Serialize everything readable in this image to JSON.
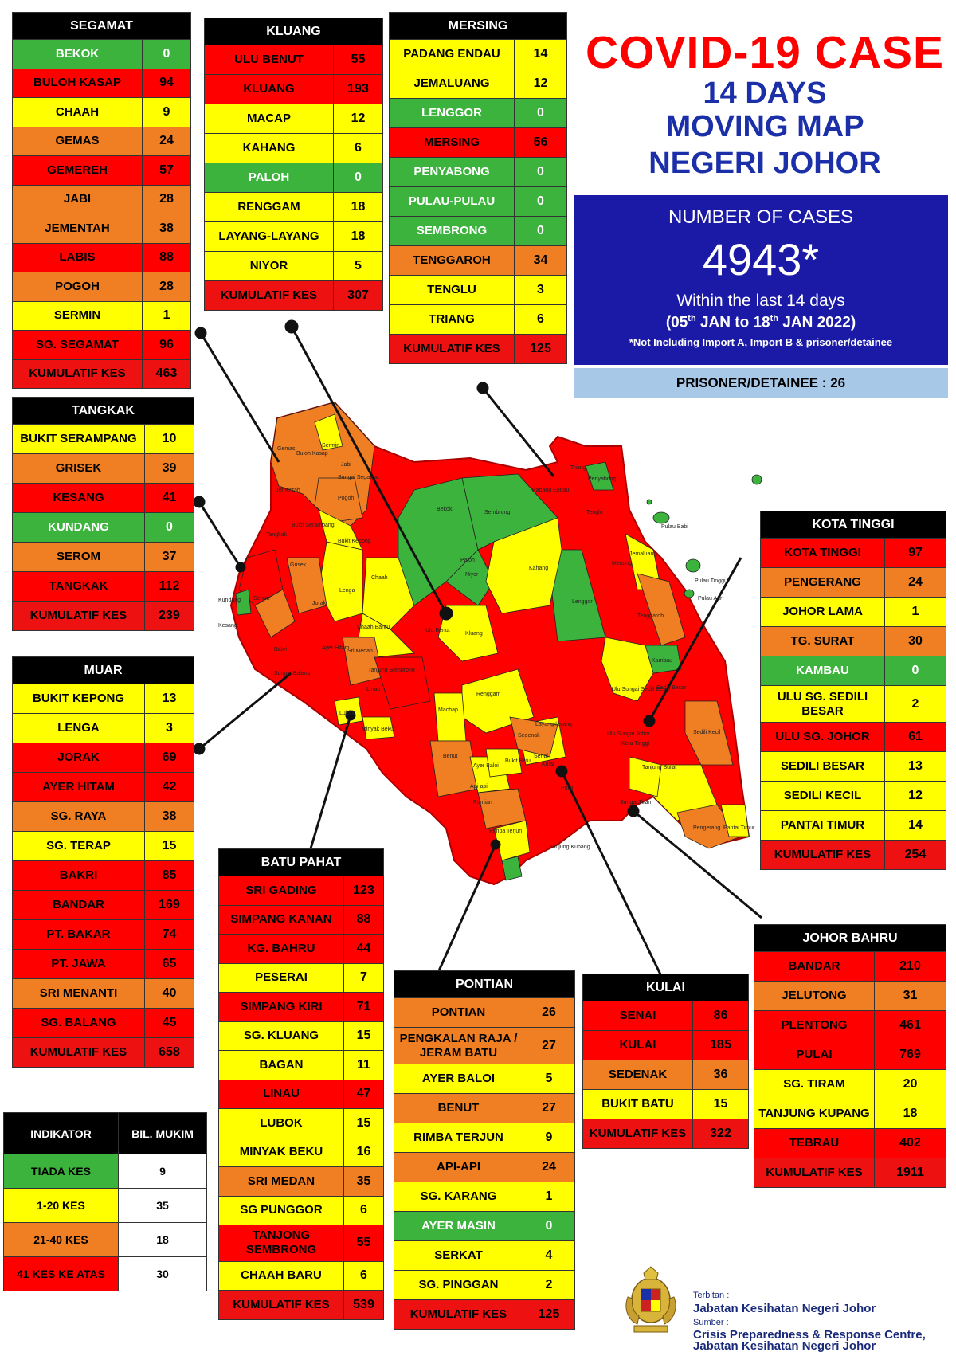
{
  "title": {
    "line1": "COVID-19 CASE",
    "line2": "14 DAYS",
    "line3": "MOVING MAP",
    "line4": "NEGERI JOHOR"
  },
  "summary": {
    "label": "NUMBER OF CASES",
    "total": "4943*",
    "within": "Within the last 14 days",
    "range": "(05th JAN to 18th JAN 2022)",
    "note": "*Not Including Import A, Import B & prisoner/detainee",
    "prisoner": "PRISONER/DETAINEE : 26"
  },
  "colors": {
    "green": "#3cb33c",
    "yellow": "#ffff00",
    "orange": "#f07f23",
    "red": "#ff0000",
    "title_red": "#ff0000",
    "title_blue": "#1a2fa8",
    "box_blue": "#1a1aa6",
    "prisoner_blue": "#a8c8e8"
  },
  "districts": {
    "segamat": {
      "title": "SEGAMAT",
      "rows": [
        {
          "name": "BEKOK",
          "value": "0",
          "color": "green"
        },
        {
          "name": "BULOH KASAP",
          "value": "94",
          "color": "red"
        },
        {
          "name": "CHAAH",
          "value": "9",
          "color": "yellow"
        },
        {
          "name": "GEMAS",
          "value": "24",
          "color": "orange"
        },
        {
          "name": "GEMEREH",
          "value": "57",
          "color": "red"
        },
        {
          "name": "JABI",
          "value": "28",
          "color": "orange"
        },
        {
          "name": "JEMENTAH",
          "value": "38",
          "color": "orange"
        },
        {
          "name": "LABIS",
          "value": "88",
          "color": "red"
        },
        {
          "name": "POGOH",
          "value": "28",
          "color": "orange"
        },
        {
          "name": "SERMIN",
          "value": "1",
          "color": "yellow"
        },
        {
          "name": "SG. SEGAMAT",
          "value": "96",
          "color": "red"
        },
        {
          "name": "KUMULATIF KES",
          "value": "463",
          "color": "total"
        }
      ]
    },
    "kluang": {
      "title": "KLUANG",
      "rows": [
        {
          "name": "ULU BENUT",
          "value": "55",
          "color": "red"
        },
        {
          "name": "KLUANG",
          "value": "193",
          "color": "red"
        },
        {
          "name": "MACAP",
          "value": "12",
          "color": "yellow"
        },
        {
          "name": "KAHANG",
          "value": "6",
          "color": "yellow"
        },
        {
          "name": "PALOH",
          "value": "0",
          "color": "green"
        },
        {
          "name": "RENGGAM",
          "value": "18",
          "color": "yellow"
        },
        {
          "name": "LAYANG-LAYANG",
          "value": "18",
          "color": "yellow"
        },
        {
          "name": "NIYOR",
          "value": "5",
          "color": "yellow"
        },
        {
          "name": "KUMULATIF KES",
          "value": "307",
          "color": "total"
        }
      ]
    },
    "mersing": {
      "title": "MERSING",
      "rows": [
        {
          "name": "PADANG ENDAU",
          "value": "14",
          "color": "yellow"
        },
        {
          "name": "JEMALUANG",
          "value": "12",
          "color": "yellow"
        },
        {
          "name": "LENGGOR",
          "value": "0",
          "color": "green"
        },
        {
          "name": "MERSING",
          "value": "56",
          "color": "red"
        },
        {
          "name": "PENYABONG",
          "value": "0",
          "color": "green"
        },
        {
          "name": "PULAU-PULAU",
          "value": "0",
          "color": "green"
        },
        {
          "name": "SEMBRONG",
          "value": "0",
          "color": "green"
        },
        {
          "name": "TENGGAROH",
          "value": "34",
          "color": "orange"
        },
        {
          "name": "TENGLU",
          "value": "3",
          "color": "yellow"
        },
        {
          "name": "TRIANG",
          "value": "6",
          "color": "yellow"
        },
        {
          "name": "KUMULATIF KES",
          "value": "125",
          "color": "total"
        }
      ]
    },
    "tangkak": {
      "title": "TANGKAK",
      "rows": [
        {
          "name": "BUKIT SERAMPANG",
          "value": "10",
          "color": "yellow"
        },
        {
          "name": "GRISEK",
          "value": "39",
          "color": "orange"
        },
        {
          "name": "KESANG",
          "value": "41",
          "color": "red"
        },
        {
          "name": "KUNDANG",
          "value": "0",
          "color": "green"
        },
        {
          "name": "SEROM",
          "value": "37",
          "color": "orange"
        },
        {
          "name": "TANGKAK",
          "value": "112",
          "color": "red"
        },
        {
          "name": "KUMULATIF KES",
          "value": "239",
          "color": "total"
        }
      ]
    },
    "muar": {
      "title": "MUAR",
      "rows": [
        {
          "name": "BUKIT KEPONG",
          "value": "13",
          "color": "yellow"
        },
        {
          "name": "LENGA",
          "value": "3",
          "color": "yellow"
        },
        {
          "name": "JORAK",
          "value": "69",
          "color": "red"
        },
        {
          "name": "AYER HITAM",
          "value": "42",
          "color": "red"
        },
        {
          "name": "SG. RAYA",
          "value": "38",
          "color": "orange"
        },
        {
          "name": "SG. TERAP",
          "value": "15",
          "color": "yellow"
        },
        {
          "name": "BAKRI",
          "value": "85",
          "color": "red"
        },
        {
          "name": "BANDAR",
          "value": "169",
          "color": "red"
        },
        {
          "name": "PT. BAKAR",
          "value": "74",
          "color": "red"
        },
        {
          "name": "PT. JAWA",
          "value": "65",
          "color": "red"
        },
        {
          "name": "SRI MENANTI",
          "value": "40",
          "color": "orange"
        },
        {
          "name": "SG. BALANG",
          "value": "45",
          "color": "red"
        },
        {
          "name": "KUMULATIF KES",
          "value": "658",
          "color": "total"
        }
      ]
    },
    "kota_tinggi": {
      "title": "KOTA TINGGI",
      "rows": [
        {
          "name": "KOTA TINGGI",
          "value": "97",
          "color": "red"
        },
        {
          "name": "PENGERANG",
          "value": "24",
          "color": "orange"
        },
        {
          "name": "JOHOR LAMA",
          "value": "1",
          "color": "yellow"
        },
        {
          "name": "TG. SURAT",
          "value": "30",
          "color": "orange"
        },
        {
          "name": "KAMBAU",
          "value": "0",
          "color": "green"
        },
        {
          "name": "ULU SG. SEDILI BESAR",
          "value": "2",
          "color": "yellow"
        },
        {
          "name": "ULU SG. JOHOR",
          "value": "61",
          "color": "red"
        },
        {
          "name": "SEDILI BESAR",
          "value": "13",
          "color": "yellow"
        },
        {
          "name": "SEDILI KECIL",
          "value": "12",
          "color": "yellow"
        },
        {
          "name": "PANTAI TIMUR",
          "value": "14",
          "color": "yellow"
        },
        {
          "name": "KUMULATIF KES",
          "value": "254",
          "color": "total"
        }
      ]
    },
    "batu_pahat": {
      "title": "BATU PAHAT",
      "rows": [
        {
          "name": "SRI GADING",
          "value": "123",
          "color": "red"
        },
        {
          "name": "SIMPANG KANAN",
          "value": "88",
          "color": "red"
        },
        {
          "name": "KG. BAHRU",
          "value": "44",
          "color": "red"
        },
        {
          "name": "PESERAI",
          "value": "7",
          "color": "yellow"
        },
        {
          "name": "SIMPANG KIRI",
          "value": "71",
          "color": "red"
        },
        {
          "name": "SG. KLUANG",
          "value": "15",
          "color": "yellow"
        },
        {
          "name": "BAGAN",
          "value": "11",
          "color": "yellow"
        },
        {
          "name": "LINAU",
          "value": "47",
          "color": "red"
        },
        {
          "name": "LUBOK",
          "value": "15",
          "color": "yellow"
        },
        {
          "name": "MINYAK BEKU",
          "value": "16",
          "color": "yellow"
        },
        {
          "name": "SRI MEDAN",
          "value": "35",
          "color": "orange"
        },
        {
          "name": "SG PUNGGOR",
          "value": "6",
          "color": "yellow"
        },
        {
          "name": "TANJONG SEMBRONG",
          "value": "55",
          "color": "red"
        },
        {
          "name": "CHAAH BARU",
          "value": "6",
          "color": "yellow"
        },
        {
          "name": "KUMULATIF KES",
          "value": "539",
          "color": "total"
        }
      ]
    },
    "pontian": {
      "title": "PONTIAN",
      "rows": [
        {
          "name": "PONTIAN",
          "value": "26",
          "color": "orange"
        },
        {
          "name": "PENGKALAN RAJA / JERAM BATU",
          "value": "27",
          "color": "orange"
        },
        {
          "name": "AYER BALOI",
          "value": "5",
          "color": "yellow"
        },
        {
          "name": "BENUT",
          "value": "27",
          "color": "orange"
        },
        {
          "name": "RIMBA TERJUN",
          "value": "9",
          "color": "yellow"
        },
        {
          "name": "API-API",
          "value": "24",
          "color": "orange"
        },
        {
          "name": "SG. KARANG",
          "value": "1",
          "color": "yellow"
        },
        {
          "name": "AYER MASIN",
          "value": "0",
          "color": "green"
        },
        {
          "name": "SERKAT",
          "value": "4",
          "color": "yellow"
        },
        {
          "name": "SG. PINGGAN",
          "value": "2",
          "color": "yellow"
        },
        {
          "name": "KUMULATIF KES",
          "value": "125",
          "color": "total"
        }
      ]
    },
    "kulai": {
      "title": "KULAI",
      "rows": [
        {
          "name": "SENAI",
          "value": "86",
          "color": "red"
        },
        {
          "name": "KULAI",
          "value": "185",
          "color": "red"
        },
        {
          "name": "SEDENAK",
          "value": "36",
          "color": "orange"
        },
        {
          "name": "BUKIT BATU",
          "value": "15",
          "color": "yellow"
        },
        {
          "name": "KUMULATIF KES",
          "value": "322",
          "color": "total"
        }
      ]
    },
    "johor_bahru": {
      "title": "JOHOR BAHRU",
      "rows": [
        {
          "name": "BANDAR",
          "value": "210",
          "color": "red"
        },
        {
          "name": "JELUTONG",
          "value": "31",
          "color": "orange"
        },
        {
          "name": "PLENTONG",
          "value": "461",
          "color": "red"
        },
        {
          "name": "PULAI",
          "value": "769",
          "color": "red"
        },
        {
          "name": "SG. TIRAM",
          "value": "20",
          "color": "yellow"
        },
        {
          "name": "TANJUNG KUPANG",
          "value": "18",
          "color": "yellow"
        },
        {
          "name": "TEBRAU",
          "value": "402",
          "color": "red"
        },
        {
          "name": "KUMULATIF KES",
          "value": "1911",
          "color": "total"
        }
      ]
    }
  },
  "legend": {
    "header_indicator": "INDIKATOR",
    "header_count": "BIL. MUKIM",
    "rows": [
      {
        "label": "TIADA KES",
        "count": "9",
        "color": "green"
      },
      {
        "label": "1-20 KES",
        "count": "35",
        "color": "yellow"
      },
      {
        "label": "21-40 KES",
        "count": "18",
        "color": "orange"
      },
      {
        "label": "41 KES KE ATAS",
        "count": "30",
        "color": "red"
      }
    ]
  },
  "map_labels": [
    "Gemas",
    "Buloh Kasap",
    "Sermin",
    "Jabi",
    "Sungai Segamat",
    "Jementah",
    "Pogoh",
    "Bekok",
    "Sembrong",
    "Padang Endau",
    "Triang",
    "Penyabong",
    "Tenglu",
    "Pulau Babi",
    "Tangkak",
    "Bukit Serampang",
    "Bukit Kepong",
    "Paloh",
    "Kahang",
    "Jemaluang",
    "Pulau Tinggi",
    "Pulau Aur",
    "Kundang",
    "Serom",
    "Grisek",
    "Chaah",
    "Lenga",
    "Niyor",
    "Mersing",
    "Lenggor",
    "Tenggaroh",
    "Kesang",
    "Jorak",
    "Chaah Bahru",
    "Ulu Benut",
    "Kluang",
    "Sri Medan",
    "Ayer Hitam",
    "Tanjung Sembrong",
    "Kambau",
    "Bakri",
    "Sungai Balang",
    "Linau",
    "Renggam",
    "Ulu Sungai Sedili Besar",
    "Sedili Besar",
    "Ulu Sungai Johor",
    "Machap",
    "Layang-layang",
    "Lubok",
    "Minyak Beku",
    "Kota Tinggi",
    "Sedili Kecil",
    "Sedenak",
    "Senai",
    "Benut",
    "Ayer Baloi",
    "Bukit Batu",
    "Api-api",
    "Pontian",
    "Kulai",
    "Pulai",
    "Tanjung Surat",
    "Rimba Terjun",
    "Sungai Tiram",
    "Pengerang",
    "Pantai Timur",
    "Tanjung Kupang"
  ],
  "credit": {
    "published_by_label": "Terbitan :",
    "published_by": "Jabatan Kesihatan Negeri Johor",
    "source_label": "Sumber :",
    "source_line1": "Crisis Preparedness & Response Centre,",
    "source_line2": "Jabatan Kesihatan Negeri Johor"
  }
}
